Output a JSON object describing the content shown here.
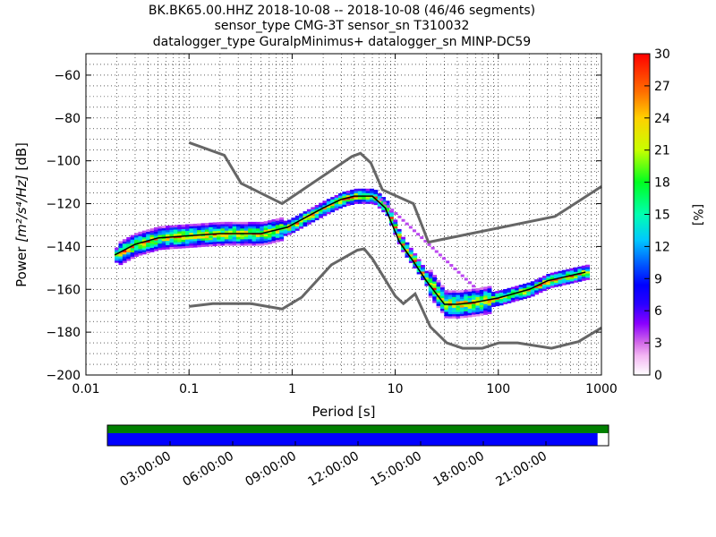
{
  "title_lines": [
    "BK.BK65.00.HHZ   2018-10-08 -- 2018-10-08  (46/46 segments)",
    "sensor_type CMG-3T sensor_sn T310032",
    "datalogger_type GuralpMinimus+ datalogger_sn MINP-DC59"
  ],
  "chart_data": {
    "type": "heatmap",
    "xlabel": "Period [s]",
    "ylabel_main": "Power ",
    "ylabel_units": "[m²/s⁴/Hz]",
    "ylabel_tail": " [dB]",
    "x_scale": "log",
    "xlim": [
      0.01,
      1000
    ],
    "ylim": [
      -200,
      -50
    ],
    "x_ticks": [
      0.01,
      0.1,
      1,
      10,
      100,
      1000
    ],
    "x_tick_labels": [
      "0.01",
      "0.1",
      "1",
      "10",
      "100",
      "1000"
    ],
    "y_ticks": [
      -200,
      -180,
      -160,
      -140,
      -120,
      -100,
      -80,
      -60
    ],
    "y_tick_labels": [
      "−200",
      "−180",
      "−160",
      "−140",
      "−120",
      "−100",
      "−80",
      "−60"
    ],
    "grid": "dotted",
    "noise_models": {
      "high": [
        [
          0.1,
          -91.5
        ],
        [
          0.22,
          -97.4
        ],
        [
          0.32,
          -110.5
        ],
        [
          0.8,
          -120
        ],
        [
          3.8,
          -98
        ],
        [
          4.6,
          -96.5
        ],
        [
          5.8,
          -101
        ],
        [
          7.5,
          -113.5
        ],
        [
          15,
          -120
        ],
        [
          21,
          -138
        ],
        [
          354,
          -126
        ],
        [
          1000,
          -112
        ]
      ],
      "low": [
        [
          0.1,
          -168
        ],
        [
          0.17,
          -166.7
        ],
        [
          0.4,
          -166.7
        ],
        [
          0.8,
          -169.2
        ],
        [
          1.24,
          -163.7
        ],
        [
          2.4,
          -148.6
        ],
        [
          4.3,
          -141.7
        ],
        [
          5.0,
          -141.1
        ],
        [
          6.0,
          -145.7
        ],
        [
          10,
          -163.1
        ],
        [
          12,
          -166.7
        ],
        [
          15.6,
          -162.1
        ],
        [
          21.9,
          -177.5
        ],
        [
          31.6,
          -185
        ],
        [
          45,
          -187.5
        ],
        [
          70,
          -187.5
        ],
        [
          101,
          -185
        ],
        [
          154,
          -185
        ],
        [
          328,
          -187.5
        ],
        [
          600,
          -184.4
        ],
        [
          1000,
          -178
        ]
      ]
    },
    "median": [
      [
        0.019,
        -144
      ],
      [
        0.03,
        -139
      ],
      [
        0.05,
        -136
      ],
      [
        0.1,
        -135
      ],
      [
        0.2,
        -134
      ],
      [
        0.5,
        -134
      ],
      [
        0.9,
        -131
      ],
      [
        2,
        -122
      ],
      [
        3,
        -118
      ],
      [
        4,
        -116.5
      ],
      [
        6,
        -116.5
      ],
      [
        8,
        -122
      ],
      [
        11,
        -138
      ],
      [
        15,
        -147
      ],
      [
        20,
        -156
      ],
      [
        30,
        -167
      ],
      [
        40,
        -167
      ],
      [
        60,
        -166
      ],
      [
        100,
        -164
      ],
      [
        200,
        -160
      ],
      [
        300,
        -156
      ],
      [
        700,
        -152
      ]
    ],
    "colorbar": {
      "label": "[%]",
      "min": 0,
      "max": 30,
      "ticks": [
        "0",
        "3",
        "6",
        "9",
        "12",
        "15",
        "18",
        "21",
        "24",
        "27",
        "30"
      ]
    }
  },
  "timeline": {
    "tick_labels": [
      "03:00:00",
      "06:00:00",
      "09:00:00",
      "12:00:00",
      "15:00:00",
      "18:00:00",
      "21:00:00"
    ],
    "data_fraction": 0.978,
    "top_color": "#008000",
    "bottom_color": "#0000ff"
  }
}
